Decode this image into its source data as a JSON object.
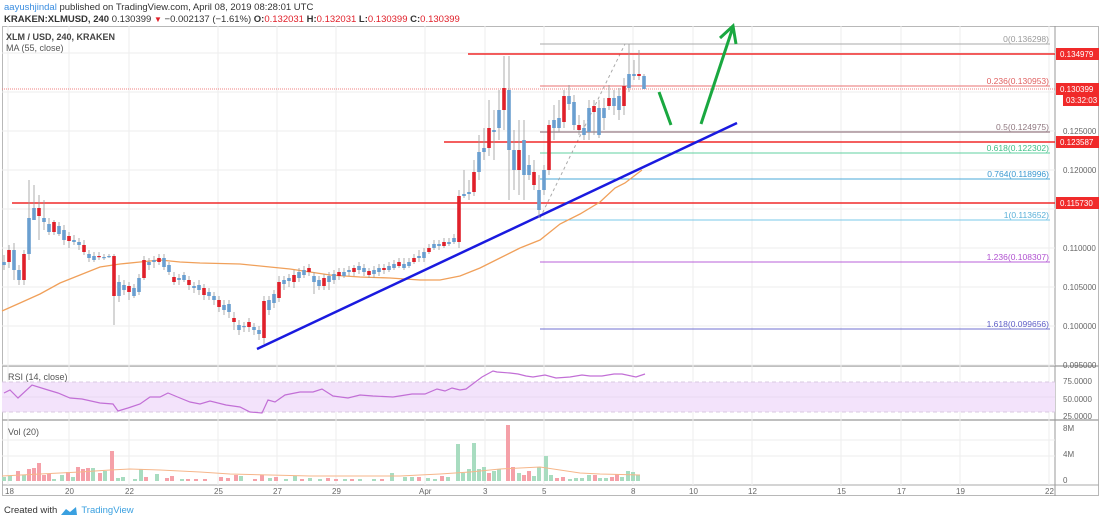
{
  "header": {
    "user": "aayushjindal",
    "published_text": " published on TradingView.com, April 08, 2019 08:28:01 UTC",
    "symbol": "KRAKEN:XLMUSD, 240",
    "last": "0.130399",
    "change": "−0.002137 (−1.61%)",
    "o_label": "O:",
    "o": "0.132031",
    "h_label": "H:",
    "h": "0.132031",
    "l_label": "L:",
    "l": "0.130399",
    "c_label": "C:",
    "c": "0.130399"
  },
  "legend": {
    "title": "XLM / USD, 240, KRAKEN",
    "ma": "MA (55, close)",
    "rsi": "RSI (14, close)",
    "vol": "Vol (20)"
  },
  "footer": {
    "created_with": "Created with",
    "brand": "TradingView"
  },
  "colors": {
    "up": "#6a9fd0",
    "down": "#e0202a",
    "ma": "#f0a05a",
    "trendline": "#1a1adf",
    "resistance": "#f02a2a",
    "arrows": "#1aa840",
    "rsi": "#c26fd6",
    "rsi_band": "#f3e3fb"
  },
  "chart_data": [
    {
      "type": "candlestick",
      "title": "XLM / USD, 240, KRAKEN",
      "xlabel": "",
      "ylabel": "",
      "x_ticks": [
        "18",
        "20",
        "22",
        "25",
        "27",
        "29",
        "Apr",
        "3",
        "5",
        "8",
        "10",
        "12",
        "15",
        "17",
        "19",
        "22"
      ],
      "y_ticks": [
        "0.095000",
        "0.100000",
        "0.105000",
        "0.110000",
        "0.115000",
        "0.120000",
        "0.125000"
      ],
      "ylim": [
        0.094,
        0.139
      ],
      "price_tags": [
        {
          "label": "0.134979",
          "type": "resistance"
        },
        {
          "label": "0.130399",
          "type": "last",
          "countdown": "03:32:03"
        },
        {
          "label": "0.123587",
          "type": "support"
        },
        {
          "label": "0.115730",
          "type": "support"
        }
      ],
      "fibonacci": [
        {
          "level": "0",
          "price": "0.136298",
          "color": "#999999"
        },
        {
          "level": "0.236",
          "price": "0.130953",
          "color": "#e06060"
        },
        {
          "level": "0.5",
          "price": "0.124975",
          "color": "#a08890"
        },
        {
          "level": "0.618",
          "price": "0.122302",
          "color": "#50c890"
        },
        {
          "level": "0.764",
          "price": "0.118996",
          "color": "#4aa8d8"
        },
        {
          "level": "1",
          "price": "0.113652",
          "color": "#6ac0e0"
        },
        {
          "level": "1.236",
          "price": "0.108307",
          "color": "#b050d0"
        },
        {
          "level": "1.618",
          "price": "0.099656",
          "color": "#6060c8"
        }
      ],
      "horizontal_lines": [
        0.134979,
        0.123587,
        0.11573
      ],
      "trendline": {
        "from": [
          0.097,
          "Mar 26"
        ],
        "to": [
          0.1259,
          "Apr 10"
        ]
      },
      "series": [
        {
          "name": "MA (55, close)",
          "values_approx": [
            0.101,
            0.104,
            0.107,
            0.1085,
            0.109,
            0.108,
            0.106,
            0.1055,
            0.106,
            0.113,
            0.118,
            0.12
          ]
        }
      ],
      "summary": {
        "low": 0.097,
        "high": 0.136298,
        "last": 0.130399
      }
    },
    {
      "type": "line",
      "title": "RSI (14, close)",
      "y_ticks": [
        "25.0000",
        "50.0000",
        "75.0000"
      ],
      "ylim": [
        20,
        90
      ],
      "band": [
        30,
        70
      ],
      "values_approx": [
        60,
        52,
        70,
        62,
        58,
        55,
        52,
        50,
        40,
        48,
        56,
        52,
        48,
        45,
        40,
        37,
        35,
        60,
        65,
        62,
        55,
        60,
        63,
        58,
        60,
        66,
        68,
        85,
        88,
        60,
        66,
        52,
        50,
        55,
        58,
        55,
        60,
        62,
        60
      ]
    },
    {
      "type": "bar",
      "title": "Vol (20)",
      "y_ticks": [
        "0",
        "4M",
        "8M"
      ],
      "ylim": [
        0,
        9000000
      ],
      "peak_values_approx": [
        {
          "date": "Mar 21",
          "value": 4800000
        },
        {
          "date": "Apr 2",
          "value": 6500000
        },
        {
          "date": "Apr 3",
          "value": 8800000
        },
        {
          "date": "Apr 5",
          "value": 4500000
        }
      ]
    }
  ]
}
